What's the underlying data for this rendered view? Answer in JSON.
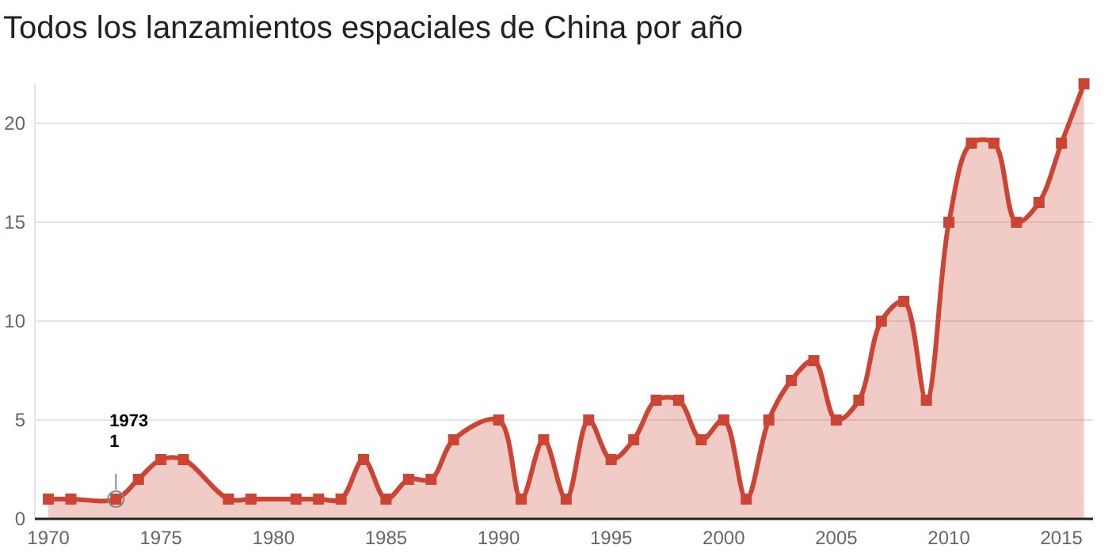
{
  "chart_data": {
    "type": "area",
    "title": "Todos los lanzamientos espaciales de China por año",
    "x": [
      1970,
      1971,
      1973,
      1974,
      1975,
      1976,
      1978,
      1979,
      1981,
      1982,
      1983,
      1984,
      1985,
      1986,
      1987,
      1988,
      1990,
      1991,
      1992,
      1993,
      1994,
      1995,
      1996,
      1997,
      1998,
      1999,
      2000,
      2001,
      2002,
      2003,
      2004,
      2005,
      2006,
      2007,
      2008,
      2009,
      2010,
      2011,
      2012,
      2013,
      2014,
      2015,
      2016
    ],
    "series": [
      {
        "color": "#cc4433",
        "values": [
          1,
          1,
          1,
          2,
          3,
          3,
          1,
          1,
          1,
          1,
          1,
          3,
          1,
          2,
          2,
          4,
          5,
          1,
          4,
          1,
          5,
          3,
          4,
          6,
          6,
          4,
          5,
          1,
          5,
          7,
          8,
          5,
          6,
          10,
          11,
          6,
          15,
          19,
          19,
          15,
          16,
          19,
          22
        ]
      }
    ],
    "xlim": [
      1969.4,
      2016.4
    ],
    "ylim": [
      0,
      22
    ],
    "xticks": [
      1970,
      1975,
      1980,
      1985,
      1990,
      1995,
      2000,
      2005,
      2010,
      2015
    ],
    "yticks": [
      0,
      5,
      10,
      15,
      20
    ],
    "grid": "y",
    "marker": "square",
    "line_style": "solid",
    "annotations": [
      {
        "text": "1973\n1",
        "x": 1973,
        "y": 1
      }
    ]
  }
}
